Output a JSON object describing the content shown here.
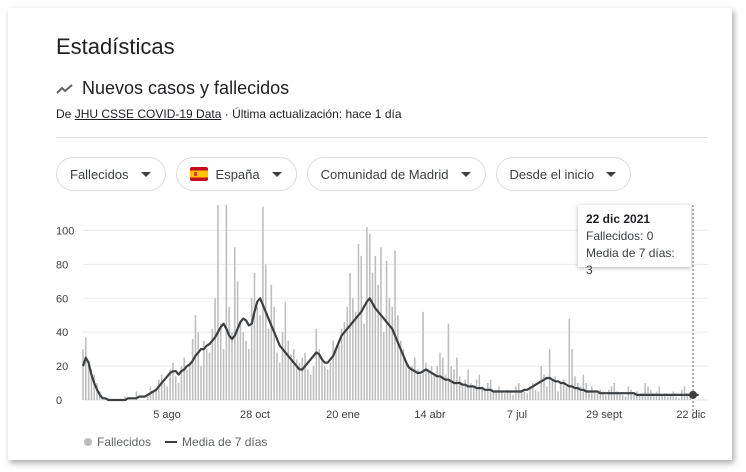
{
  "page": {
    "title": "Estadísticas",
    "subtitle": "Nuevos casos y fallecidos",
    "source_prefix": "De ",
    "source_link": "JHU CSSE COVID-19 Data",
    "source_suffix": " · Última actualización: hace 1 día"
  },
  "filters": {
    "metric": "Fallecidos",
    "country": "España",
    "region": "Comunidad de Madrid",
    "period": "Desde el inicio"
  },
  "tooltip": {
    "date": "22 dic 2021",
    "line1": "Fallecidos: 0",
    "line2": "Media de 7 días: 3"
  },
  "legend": {
    "series1": "Fallecidos",
    "series2": "Media de 7 días"
  },
  "colors": {
    "bars": "#bdbdbd",
    "line": "#3c4043",
    "grid": "#e8eaed",
    "flag_red": "#c60b1e",
    "flag_yellow": "#ffc400"
  },
  "chart_data": {
    "type": "bar",
    "title": "",
    "xlabel": "",
    "ylabel": "",
    "ylim": [
      0,
      115
    ],
    "yticks": [
      0,
      20,
      40,
      60,
      80,
      100
    ],
    "xticks": [
      "5 ago",
      "28 oct",
      "20 ene",
      "14 abr",
      "7 jul",
      "29 sept",
      "22 dic"
    ],
    "series": [
      {
        "name": "Fallecidos",
        "kind": "bar",
        "values": [
          30,
          37,
          22,
          18,
          15,
          10,
          5,
          0,
          0,
          0,
          0,
          0,
          0,
          0,
          0,
          2,
          0,
          0,
          0,
          5,
          0,
          0,
          0,
          2,
          8,
          5,
          7,
          12,
          15,
          10,
          8,
          18,
          22,
          14,
          10,
          20,
          25,
          18,
          22,
          36,
          50,
          40,
          20,
          35,
          30,
          28,
          42,
          60,
          115,
          45,
          30,
          115,
          55,
          40,
          90,
          70,
          45,
          40,
          35,
          30,
          60,
          75,
          55,
          50,
          114,
          80,
          42,
          68,
          55,
          28,
          22,
          40,
          58,
          35,
          27,
          30,
          24,
          22,
          25,
          28,
          18,
          15,
          20,
          42,
          30,
          25,
          20,
          18,
          22,
          35,
          30,
          32,
          42,
          46,
          55,
          75,
          60,
          52,
          92,
          85,
          45,
          102,
          98,
          75,
          85,
          68,
          90,
          40,
          82,
          60,
          55,
          88,
          50,
          35,
          30,
          22,
          18,
          20,
          25,
          18,
          15,
          52,
          22,
          18,
          20,
          15,
          20,
          28,
          25,
          15,
          45,
          20,
          18,
          25,
          14,
          10,
          12,
          18,
          10,
          8,
          12,
          15,
          8,
          6,
          10,
          12,
          5,
          6,
          8,
          5,
          4,
          6,
          5,
          3,
          8,
          10,
          6,
          5,
          4,
          8,
          10,
          6,
          5,
          20,
          15,
          8,
          30,
          12,
          14,
          5,
          10,
          12,
          8,
          48,
          30,
          14,
          10,
          8,
          15,
          10,
          6,
          8,
          5,
          4,
          6,
          5,
          3,
          6,
          8,
          10,
          5,
          4,
          3,
          2,
          8,
          6,
          4,
          5,
          3,
          4,
          10,
          8,
          6,
          4,
          5,
          8,
          3,
          4,
          2,
          3,
          5,
          2,
          1,
          6,
          8,
          4,
          3,
          0
        ]
      },
      {
        "name": "Media de 7 días",
        "kind": "line",
        "values": [
          20,
          25,
          22,
          15,
          10,
          6,
          3,
          1,
          1,
          0,
          0,
          0,
          0,
          0,
          0,
          0,
          1,
          1,
          1,
          1,
          2,
          2,
          2,
          3,
          4,
          5,
          6,
          8,
          10,
          12,
          14,
          16,
          17,
          17,
          15,
          17,
          18,
          20,
          21,
          23,
          26,
          28,
          30,
          30,
          32,
          33,
          35,
          37,
          40,
          43,
          45,
          42,
          38,
          36,
          38,
          42,
          46,
          48,
          47,
          44,
          45,
          52,
          58,
          60,
          56,
          52,
          48,
          44,
          40,
          36,
          32,
          30,
          28,
          26,
          24,
          22,
          20,
          18,
          18,
          20,
          22,
          24,
          26,
          28,
          27,
          24,
          22,
          22,
          24,
          26,
          30,
          34,
          38,
          40,
          42,
          44,
          46,
          48,
          50,
          52,
          55,
          58,
          60,
          57,
          54,
          52,
          50,
          48,
          46,
          44,
          42,
          38,
          34,
          30,
          26,
          22,
          19,
          18,
          17,
          16,
          16,
          17,
          18,
          17,
          16,
          15,
          14,
          14,
          13,
          12,
          12,
          11,
          10,
          10,
          10,
          9,
          9,
          8,
          8,
          8,
          7,
          7,
          7,
          6,
          6,
          6,
          5,
          5,
          5,
          5,
          5,
          5,
          5,
          5,
          5,
          5,
          5,
          6,
          6,
          7,
          8,
          9,
          10,
          11,
          12,
          13,
          13,
          12,
          11,
          11,
          10,
          10,
          9,
          8,
          8,
          7,
          7,
          6,
          6,
          5,
          5,
          5,
          5,
          5,
          4,
          4,
          4,
          4,
          4,
          4,
          4,
          4,
          4,
          4,
          4,
          4,
          4,
          3,
          3,
          3,
          3,
          3,
          3,
          3,
          3,
          3,
          3,
          3,
          3,
          3,
          3,
          3,
          3,
          3,
          3,
          3,
          3,
          3,
          3,
          3
        ]
      }
    ],
    "grid": true,
    "legend_position": "bottom-left"
  }
}
